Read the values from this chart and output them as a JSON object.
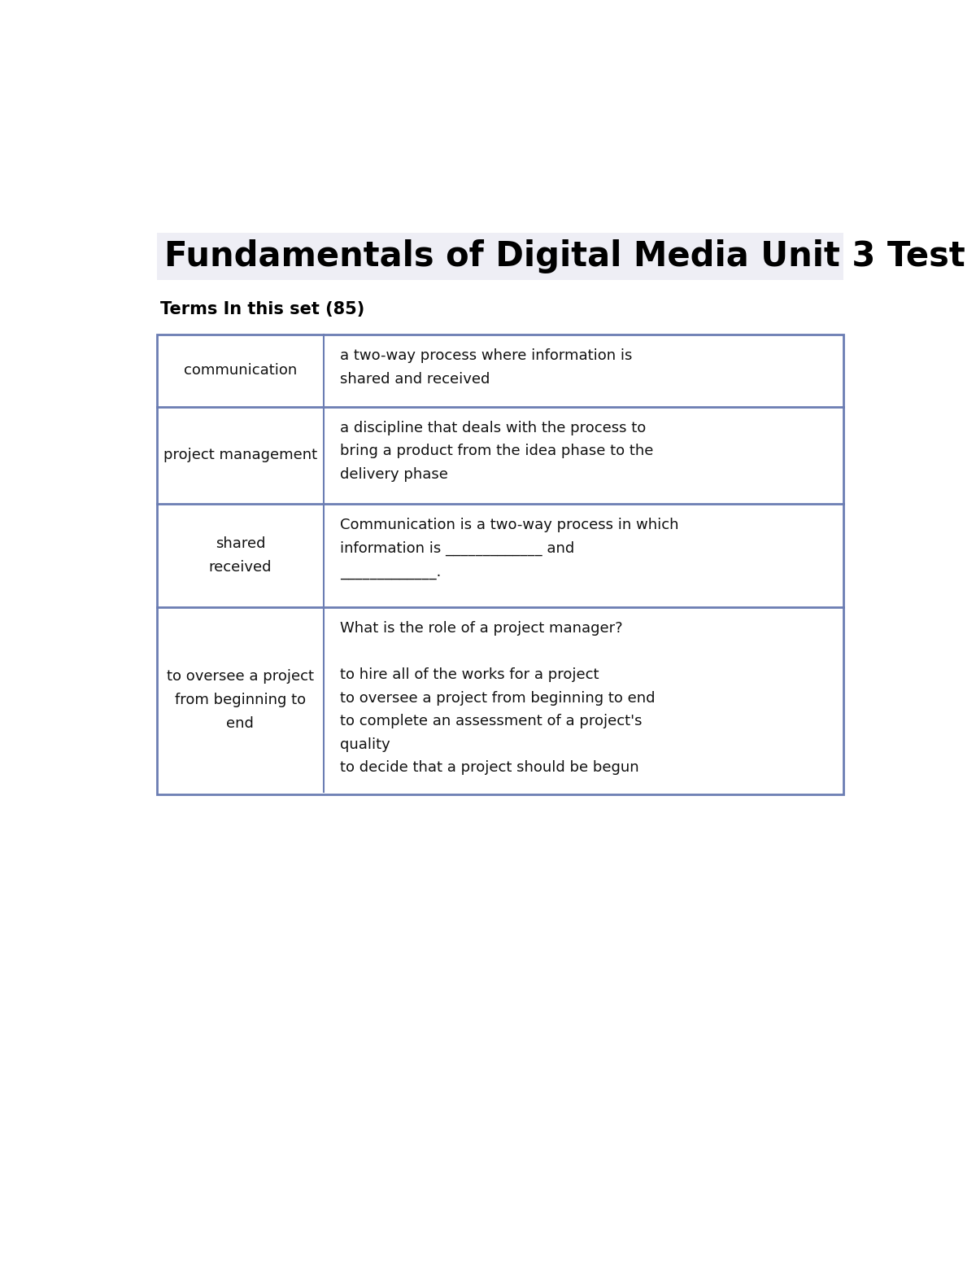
{
  "title": "Fundamentals of Digital Media Unit 3 Test",
  "subtitle": "Terms In this set (85)",
  "title_bg_color": "#eeeef5",
  "table_border_color": "#6b7db3",
  "bg_color": "#ffffff",
  "rows": [
    {
      "term": "communication",
      "definition": "a two-way process where information is\nshared and received"
    },
    {
      "term": "project management",
      "definition": "a discipline that deals with the process to\nbring a product from the idea phase to the\ndelivery phase"
    },
    {
      "term": "shared\nreceived",
      "definition": "Communication is a two-way process in which\ninformation is _____________ and\n_____________."
    },
    {
      "term": "to oversee a project\nfrom beginning to\nend",
      "definition": "What is the role of a project manager?\n\nto hire all of the works for a project\nto oversee a project from beginning to end\nto complete an assessment of a project's\nquality\nto decide that a project should be begun"
    }
  ],
  "font_size_title": 30,
  "font_size_subtitle": 15,
  "font_size_term": 13,
  "font_size_def": 13,
  "fig_width": 12.0,
  "fig_height": 15.53,
  "dpi": 100
}
